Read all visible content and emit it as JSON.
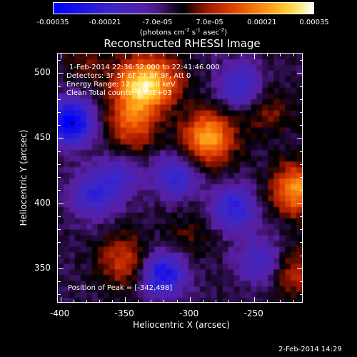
{
  "colorbar": {
    "tick_labels": [
      "-0.00035",
      "-0.00021",
      "-7.0e-05",
      "7.0e-05",
      "0.00021",
      "0.00035"
    ],
    "units_parts": [
      "(photons cm",
      "-2",
      " s",
      "-1",
      " asec",
      "-2",
      ")"
    ]
  },
  "title": "Reconstructed RHESSI Image",
  "annotation": {
    "time_range": "1-Feb-2014 22:36:52.000 to 22:41:46.000",
    "detectors": "Detectors: 3F 5F 6F 7F 8F 9F, Att 0",
    "energy_range": "Energy Range: 12.0 - 25.0 keV",
    "clean_counts": "Clean     Total counts: 9.73E+03",
    "peak_position": "Position of Peak = [-342,498]"
  },
  "axes": {
    "xlabel": "Heliocentric X (arcsec)",
    "ylabel": "Heliocentric Y (arcsec)",
    "x_tick_labels": [
      "-400",
      "-350",
      "-300",
      "-250"
    ],
    "y_tick_labels": [
      "500",
      "450",
      "400",
      "350"
    ],
    "xlim": [
      -402,
      -212
    ],
    "ylim": [
      323,
      515
    ]
  },
  "timestamp": "2-Feb-2014 14:29",
  "chart_data": {
    "type": "heatmap",
    "title": "Reconstructed RHESSI Image",
    "xlabel": "Heliocentric X (arcsec)",
    "ylabel": "Heliocentric Y (arcsec)",
    "xlim": [
      -402,
      -212
    ],
    "ylim": [
      323,
      515
    ],
    "colorscale_range": [
      -0.00035,
      0.00035
    ],
    "colormap": "blue-purple-black-red-yellow-white",
    "peak_position": [
      -342,
      498
    ],
    "bright_sources": [
      {
        "x": -338,
        "y": 490,
        "level": 0.0003
      },
      {
        "x": -285,
        "y": 450,
        "level": 0.00028
      },
      {
        "x": -345,
        "y": 460,
        "level": 0.00018
      },
      {
        "x": -215,
        "y": 410,
        "level": 0.00026
      },
      {
        "x": -350,
        "y": 355,
        "level": 0.00015
      },
      {
        "x": -320,
        "y": 495,
        "level": 0.00012
      },
      {
        "x": -238,
        "y": 470,
        "level": 8e-05
      },
      {
        "x": -215,
        "y": 345,
        "level": 0.00012
      },
      {
        "x": -300,
        "y": 375,
        "level": 6e-05
      },
      {
        "x": -380,
        "y": 510,
        "level": 7e-05
      }
    ],
    "dim_sources": [
      {
        "x": -392,
        "y": 462,
        "level": -0.00033
      },
      {
        "x": -320,
        "y": 345,
        "level": -0.00026
      },
      {
        "x": -265,
        "y": 395,
        "level": -0.0002
      },
      {
        "x": -310,
        "y": 420,
        "level": -0.00018
      },
      {
        "x": -375,
        "y": 405,
        "level": -0.00016
      },
      {
        "x": -260,
        "y": 490,
        "level": -0.00017
      },
      {
        "x": -355,
        "y": 420,
        "level": -0.00013
      },
      {
        "x": -245,
        "y": 355,
        "level": -0.00014
      }
    ]
  }
}
